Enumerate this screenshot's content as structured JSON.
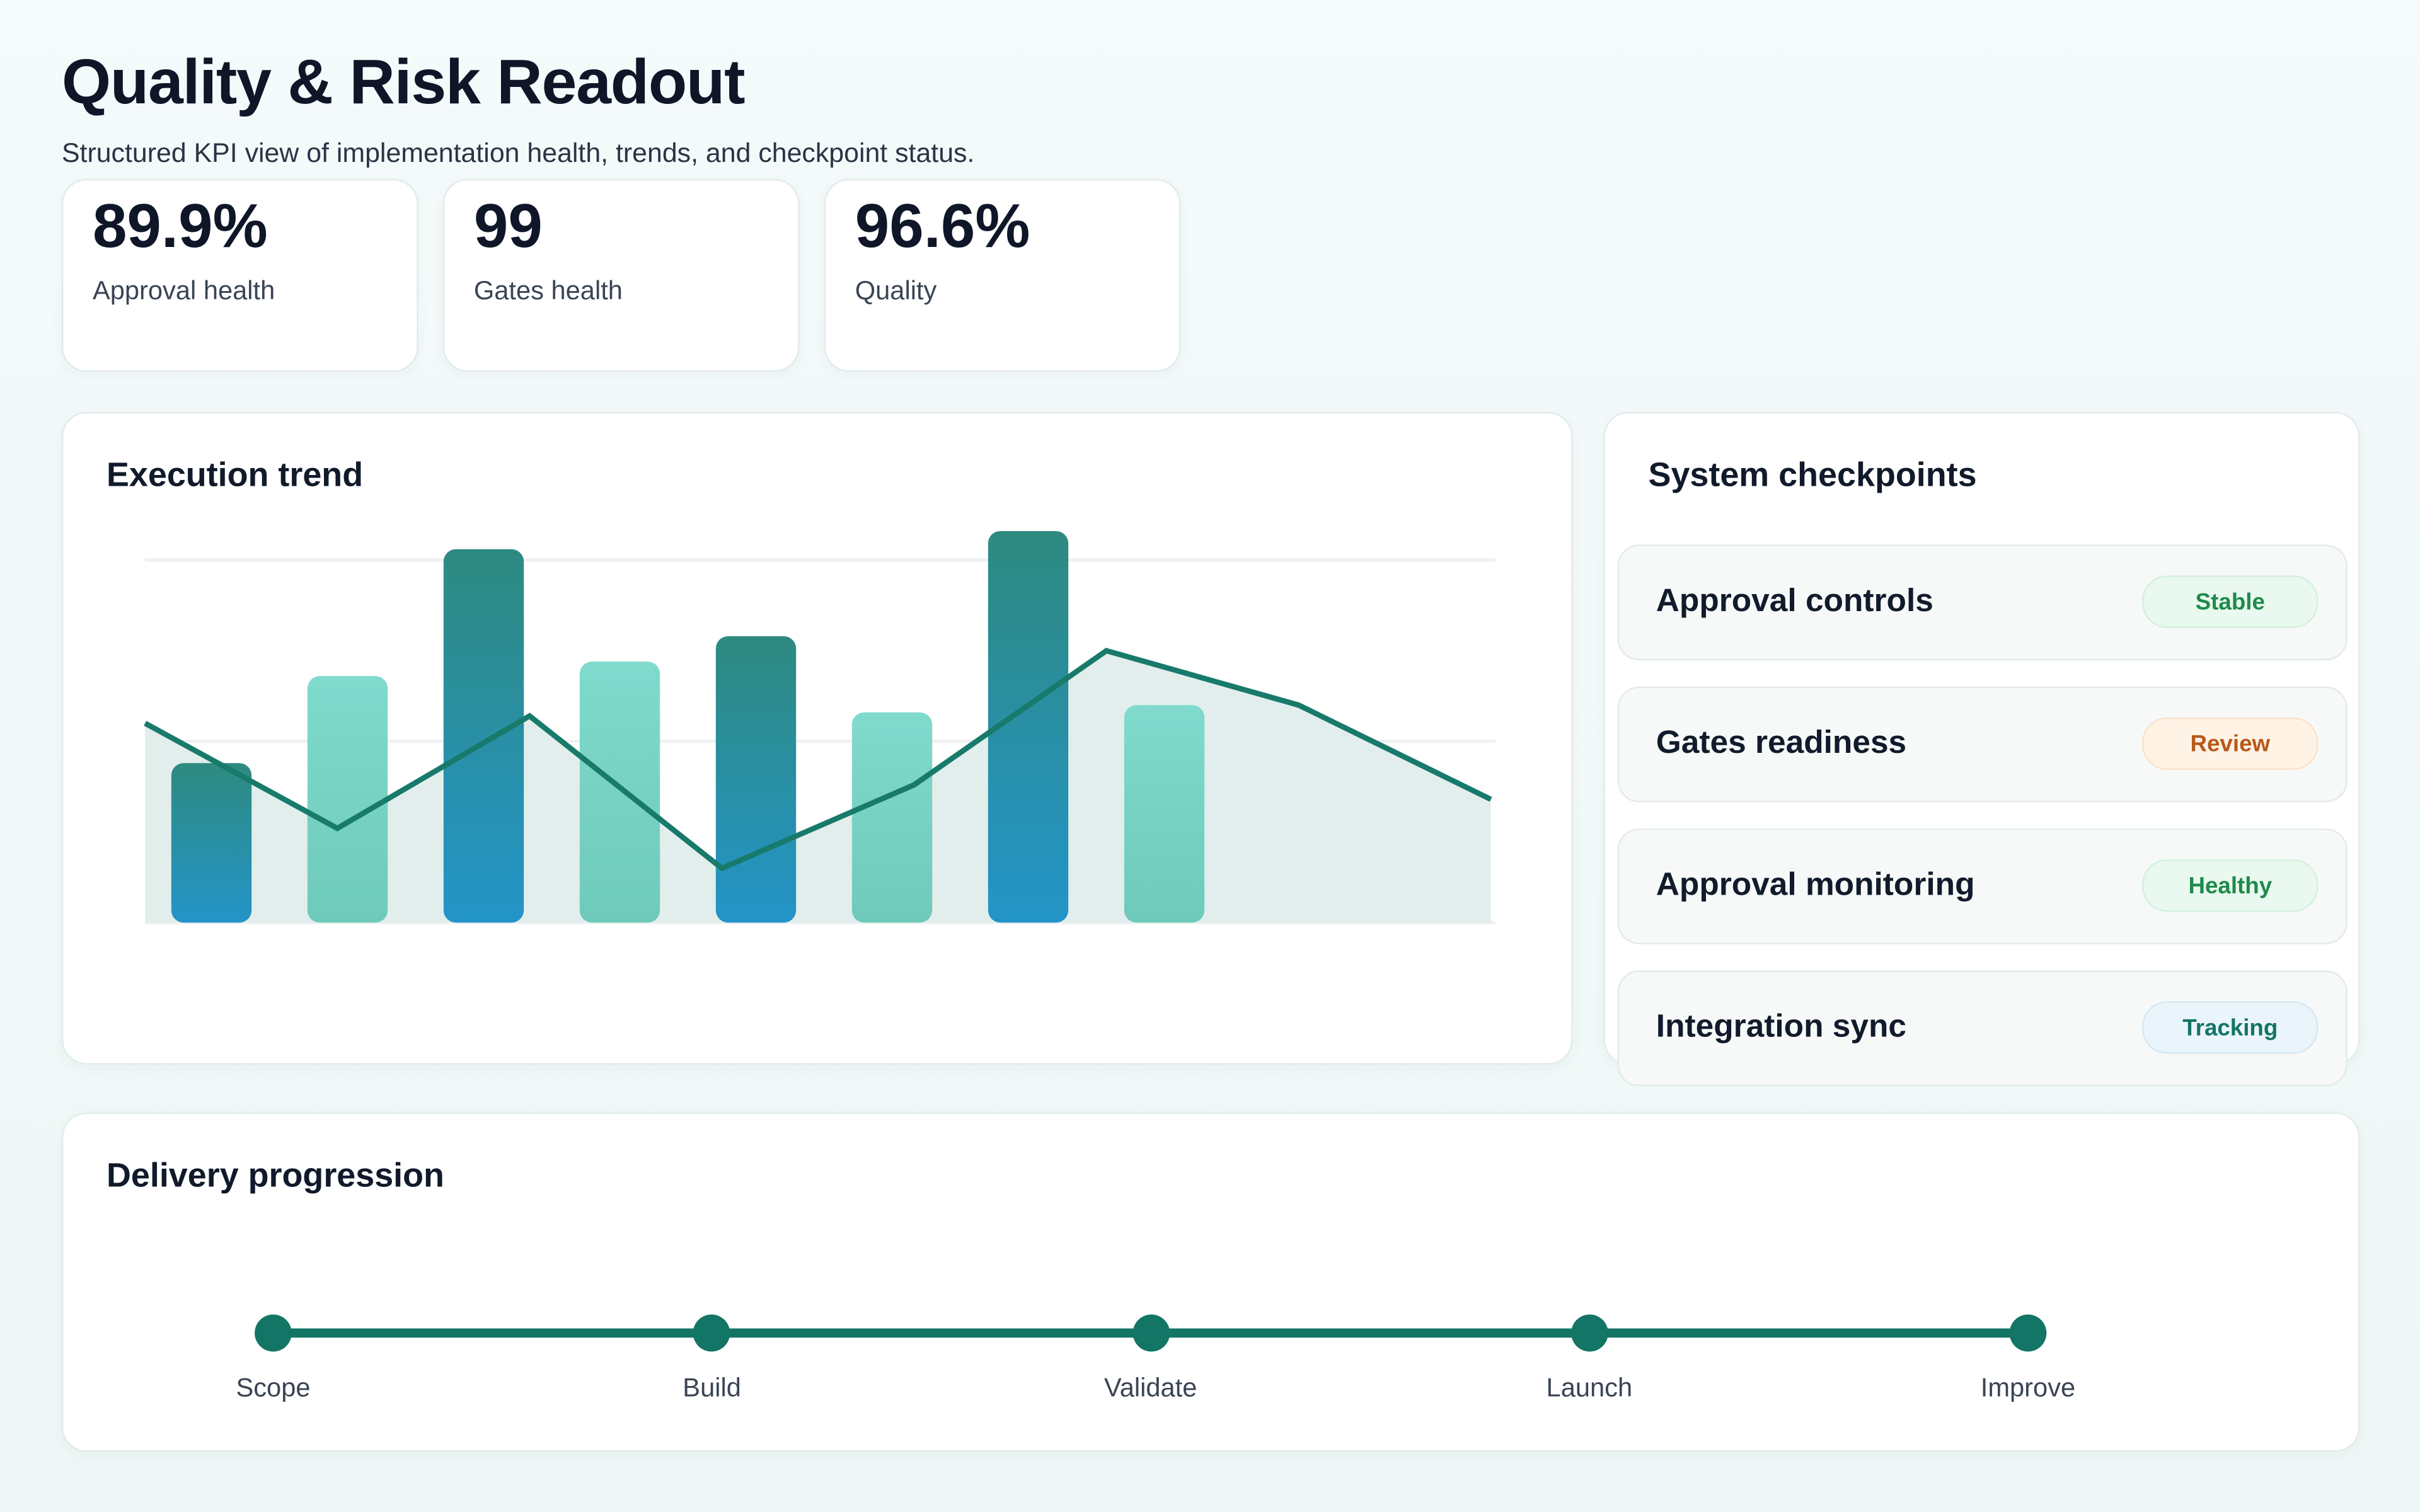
{
  "header": {
    "title": "Quality & Risk Readout",
    "subtitle": "Structured KPI view of implementation health, trends, and checkpoint status."
  },
  "kpis": [
    {
      "value": "89.9%",
      "label": "Approval health"
    },
    {
      "value": "99",
      "label": "Gates health"
    },
    {
      "value": "96.6%",
      "label": "Quality"
    }
  ],
  "trend": {
    "title": "Execution trend"
  },
  "chart_data": {
    "type": "bar+line",
    "title": "Execution trend",
    "ylim": [
      0,
      110
    ],
    "grid": true,
    "bars": {
      "values": [
        44,
        68,
        103,
        72,
        79,
        58,
        108,
        60
      ],
      "colors": [
        "#2394c8",
        "#74d4c6",
        "#2394c8",
        "#74d4c6",
        "#2394c8",
        "#74d4c6",
        "#2394c8",
        "#74d4c6"
      ]
    },
    "line": {
      "values": [
        55,
        26,
        57,
        15,
        38,
        75,
        60,
        34
      ],
      "color": "#177a6b",
      "area_color": "#e2eeec"
    }
  },
  "checkpoints": {
    "title": "System checkpoints",
    "items": [
      {
        "name": "Approval controls",
        "status": "Stable",
        "bg": "#e9f9ef",
        "fg": "#1f8a4c",
        "border": "#d3f0dd"
      },
      {
        "name": "Gates readiness",
        "status": "Review",
        "bg": "#fff3e6",
        "fg": "#b8591a",
        "border": "#fbe2c7"
      },
      {
        "name": "Approval monitoring",
        "status": "Healthy",
        "bg": "#e9f9ef",
        "fg": "#1f8a4c",
        "border": "#d3f0dd"
      },
      {
        "name": "Integration sync",
        "status": "Tracking",
        "bg": "#eaf4fb",
        "fg": "#137565",
        "border": "#d6e7f3"
      }
    ]
  },
  "delivery": {
    "title": "Delivery progression",
    "steps": [
      "Scope",
      "Build",
      "Validate",
      "Launch",
      "Improve"
    ],
    "color": "#137565"
  }
}
